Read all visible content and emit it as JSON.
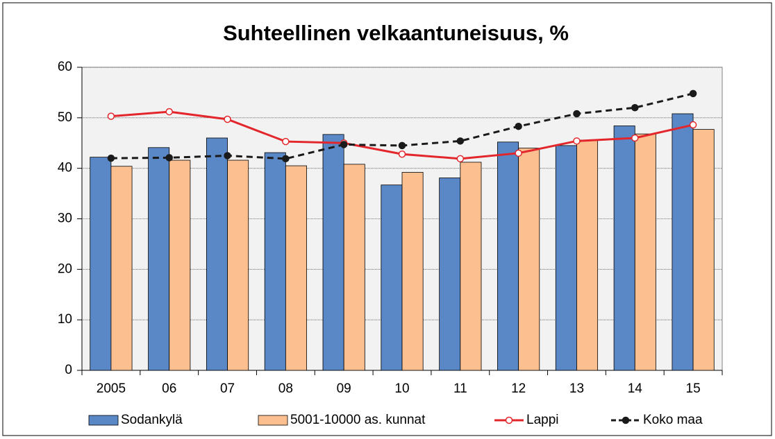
{
  "chart_data": {
    "type": "bar_line",
    "title": "Suhteellinen velkaantuneisuus, %",
    "categories": [
      "2005",
      "06",
      "07",
      "08",
      "09",
      "10",
      "11",
      "12",
      "13",
      "14",
      "15"
    ],
    "series": [
      {
        "name": "Sodankylä",
        "type": "bar",
        "color": "#5a87c5",
        "values": [
          42.2,
          44.1,
          46.0,
          43.1,
          46.7,
          36.7,
          38.1,
          45.2,
          44.5,
          48.4,
          50.8
        ]
      },
      {
        "name": "5001-10000 as. kunnat",
        "type": "bar",
        "color": "#fbbf90",
        "values": [
          40.4,
          41.6,
          41.6,
          40.5,
          40.8,
          39.2,
          41.2,
          44.0,
          45.6,
          46.8,
          47.7
        ]
      },
      {
        "name": "Lappi",
        "type": "line",
        "color": "#e3262b",
        "marker": "open-circle",
        "values": [
          50.3,
          51.2,
          49.7,
          45.3,
          45.0,
          42.8,
          41.9,
          43.0,
          45.4,
          46.0,
          48.6
        ]
      },
      {
        "name": "Koko maa",
        "type": "line",
        "color": "#1a1a1a",
        "marker": "dot",
        "dashed": true,
        "values": [
          42.0,
          42.1,
          42.5,
          41.9,
          44.7,
          44.5,
          45.4,
          48.3,
          50.8,
          52.0,
          54.8
        ]
      }
    ],
    "ylim": [
      0,
      60
    ],
    "yticks": [
      0,
      10,
      20,
      30,
      40,
      50,
      60
    ],
    "grid": true,
    "legend": "bottom"
  }
}
